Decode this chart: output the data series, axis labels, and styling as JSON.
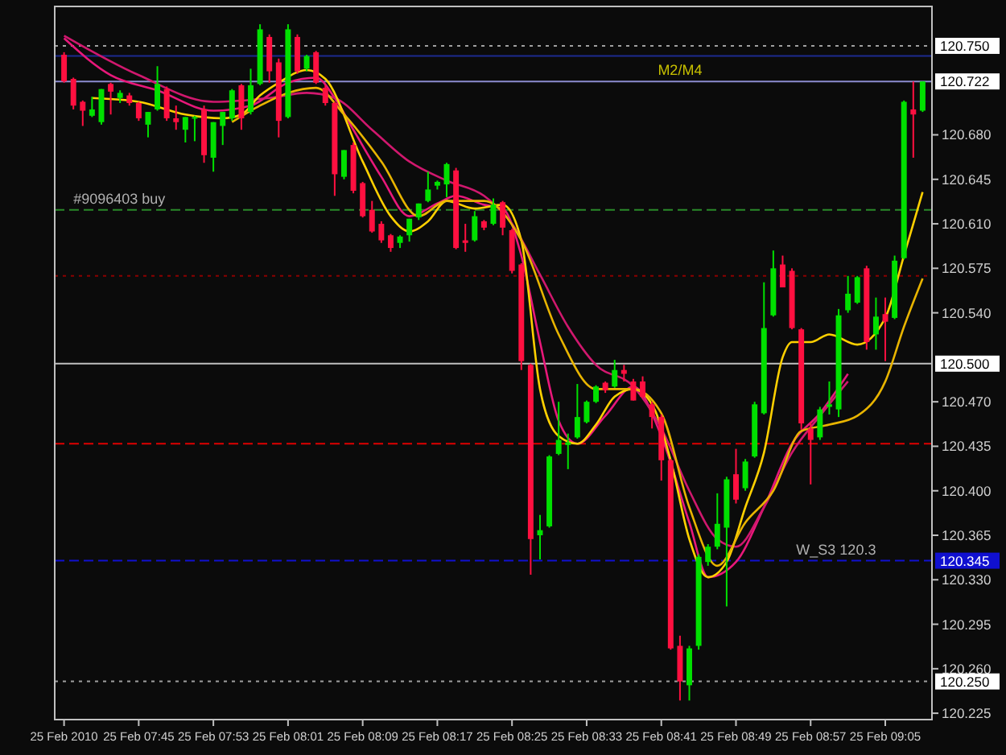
{
  "chart_data": {
    "type": "candlestick",
    "x": [
      "2010-02-25T07:37",
      "2010-02-25T07:38",
      "2010-02-25T07:39",
      "2010-02-25T07:40",
      "2010-02-25T07:41",
      "2010-02-25T07:42",
      "2010-02-25T07:43",
      "2010-02-25T07:44",
      "2010-02-25T07:45",
      "2010-02-25T07:46",
      "2010-02-25T07:47",
      "2010-02-25T07:48",
      "2010-02-25T07:49",
      "2010-02-25T07:50",
      "2010-02-25T07:51",
      "2010-02-25T07:52",
      "2010-02-25T07:53",
      "2010-02-25T07:54",
      "2010-02-25T07:55",
      "2010-02-25T07:56",
      "2010-02-25T07:57",
      "2010-02-25T07:58",
      "2010-02-25T07:59",
      "2010-02-25T08:00",
      "2010-02-25T08:01",
      "2010-02-25T08:02",
      "2010-02-25T08:03",
      "2010-02-25T08:04",
      "2010-02-25T08:05",
      "2010-02-25T08:06",
      "2010-02-25T08:07",
      "2010-02-25T08:08",
      "2010-02-25T08:09",
      "2010-02-25T08:10",
      "2010-02-25T08:11",
      "2010-02-25T08:12",
      "2010-02-25T08:13",
      "2010-02-25T08:14",
      "2010-02-25T08:15",
      "2010-02-25T08:16",
      "2010-02-25T08:17",
      "2010-02-25T08:18",
      "2010-02-25T08:19",
      "2010-02-25T08:20",
      "2010-02-25T08:21",
      "2010-02-25T08:22",
      "2010-02-25T08:23",
      "2010-02-25T08:24",
      "2010-02-25T08:25",
      "2010-02-25T08:26",
      "2010-02-25T08:27",
      "2010-02-25T08:28",
      "2010-02-25T08:29",
      "2010-02-25T08:30",
      "2010-02-25T08:31",
      "2010-02-25T08:32",
      "2010-02-25T08:33",
      "2010-02-25T08:34",
      "2010-02-25T08:35",
      "2010-02-25T08:36",
      "2010-02-25T08:37",
      "2010-02-25T08:38",
      "2010-02-25T08:39",
      "2010-02-25T08:40",
      "2010-02-25T08:41",
      "2010-02-25T08:42",
      "2010-02-25T08:43",
      "2010-02-25T08:44",
      "2010-02-25T08:45",
      "2010-02-25T08:46",
      "2010-02-25T08:47",
      "2010-02-25T08:48",
      "2010-02-25T08:49",
      "2010-02-25T08:50",
      "2010-02-25T08:51",
      "2010-02-25T08:52",
      "2010-02-25T08:53",
      "2010-02-25T08:54",
      "2010-02-25T08:55",
      "2010-02-25T08:56",
      "2010-02-25T08:57",
      "2010-02-25T08:58",
      "2010-02-25T08:59",
      "2010-02-25T09:00",
      "2010-02-25T09:01",
      "2010-02-25T09:02",
      "2010-02-25T09:03",
      "2010-02-25T09:04",
      "2010-02-25T09:05",
      "2010-02-25T09:06",
      "2010-02-25T09:07",
      "2010-02-25T09:08",
      "2010-02-25T09:09"
    ],
    "ohlc": [
      [
        120.743,
        120.745,
        120.721,
        120.722
      ],
      [
        120.724,
        120.725,
        120.7,
        120.703
      ],
      [
        120.706,
        120.707,
        120.687,
        120.699
      ],
      [
        120.695,
        120.71,
        120.694,
        120.7
      ],
      [
        120.69,
        120.716,
        120.688,
        120.716
      ],
      [
        120.72,
        120.721,
        120.696,
        120.714
      ],
      [
        120.709,
        120.715,
        120.705,
        120.713
      ],
      [
        120.711,
        120.713,
        120.703,
        120.705
      ],
      [
        120.705,
        120.706,
        120.691,
        120.693
      ],
      [
        120.688,
        120.698,
        120.678,
        120.698
      ],
      [
        120.7,
        120.734,
        120.699,
        120.72
      ],
      [
        120.716,
        120.718,
        120.691,
        120.693
      ],
      [
        120.693,
        120.703,
        120.684,
        120.69
      ],
      [
        120.684,
        120.694,
        120.674,
        120.694
      ],
      [
        120.693,
        120.695,
        120.675,
        120.694
      ],
      [
        120.7,
        120.703,
        120.658,
        120.664
      ],
      [
        120.662,
        120.69,
        120.651,
        120.69
      ],
      [
        120.687,
        120.698,
        120.672,
        120.698
      ],
      [
        120.693,
        120.716,
        120.691,
        120.715
      ],
      [
        120.719,
        120.72,
        120.684,
        120.693
      ],
      [
        120.698,
        120.732,
        120.696,
        120.719
      ],
      [
        120.72,
        120.767,
        120.719,
        120.763
      ],
      [
        120.757,
        120.759,
        120.721,
        120.73
      ],
      [
        120.737,
        120.74,
        120.678,
        120.691
      ],
      [
        120.694,
        120.767,
        120.693,
        120.763
      ],
      [
        120.757,
        120.759,
        120.728,
        120.73
      ],
      [
        120.732,
        120.743,
        120.73,
        120.742
      ],
      [
        120.745,
        120.746,
        120.72,
        120.721
      ],
      [
        120.717,
        120.719,
        120.703,
        120.705
      ],
      [
        120.705,
        120.706,
        120.632,
        120.649
      ],
      [
        120.647,
        120.668,
        120.645,
        120.668
      ],
      [
        120.672,
        120.674,
        120.634,
        120.636
      ],
      [
        120.642,
        120.643,
        120.615,
        120.616
      ],
      [
        120.621,
        120.628,
        120.603,
        120.604
      ],
      [
        120.61,
        120.612,
        120.595,
        120.597
      ],
      [
        120.601,
        120.602,
        120.588,
        120.591
      ],
      [
        120.595,
        120.601,
        120.591,
        120.6
      ],
      [
        120.601,
        120.614,
        120.596,
        120.614
      ],
      [
        120.615,
        120.626,
        120.613,
        120.626
      ],
      [
        120.628,
        120.651,
        120.627,
        120.637
      ],
      [
        120.64,
        120.644,
        120.637,
        120.643
      ],
      [
        120.641,
        120.658,
        120.631,
        120.657
      ],
      [
        120.652,
        120.654,
        120.59,
        120.591
      ],
      [
        120.597,
        120.61,
        120.588,
        120.595
      ],
      [
        120.597,
        120.62,
        120.596,
        120.616
      ],
      [
        120.612,
        120.613,
        120.605,
        120.607
      ],
      [
        120.61,
        120.63,
        120.609,
        120.625
      ],
      [
        120.627,
        120.628,
        120.601,
        120.607
      ],
      [
        120.605,
        120.606,
        120.571,
        120.573
      ],
      [
        120.578,
        120.579,
        120.495,
        120.502
      ],
      [
        120.499,
        120.5,
        120.334,
        120.362
      ],
      [
        120.365,
        120.381,
        120.346,
        120.369
      ],
      [
        120.372,
        120.428,
        120.371,
        120.427
      ],
      [
        120.429,
        120.47,
        120.428,
        120.44
      ],
      [
        120.436,
        120.445,
        120.417,
        120.438
      ],
      [
        120.442,
        120.484,
        120.441,
        120.458
      ],
      [
        120.454,
        120.471,
        120.453,
        120.47
      ],
      [
        120.47,
        120.483,
        120.469,
        120.482
      ],
      [
        120.485,
        120.486,
        120.477,
        120.479
      ],
      [
        120.482,
        120.503,
        120.481,
        120.495
      ],
      [
        120.495,
        120.499,
        120.486,
        120.492
      ],
      [
        120.486,
        120.488,
        120.471,
        120.471
      ],
      [
        120.486,
        120.49,
        120.473,
        120.474
      ],
      [
        120.468,
        120.47,
        120.449,
        120.458
      ],
      [
        120.458,
        120.46,
        120.408,
        120.424
      ],
      [
        120.424,
        120.425,
        120.275,
        120.276
      ],
      [
        120.278,
        120.286,
        120.235,
        120.25
      ],
      [
        120.247,
        120.278,
        120.235,
        120.276
      ],
      [
        120.278,
        120.35,
        120.275,
        120.348
      ],
      [
        120.344,
        120.358,
        120.341,
        120.356
      ],
      [
        120.356,
        120.398,
        120.354,
        120.374
      ],
      [
        120.371,
        120.411,
        120.309,
        120.409
      ],
      [
        120.413,
        120.433,
        120.39,
        120.393
      ],
      [
        120.402,
        120.425,
        120.4,
        120.423
      ],
      [
        120.427,
        120.47,
        120.426,
        120.468
      ],
      [
        120.461,
        120.564,
        120.46,
        120.528
      ],
      [
        120.538,
        120.589,
        120.537,
        120.575
      ],
      [
        120.578,
        120.585,
        120.56,
        120.56
      ],
      [
        120.573,
        120.575,
        120.527,
        120.528
      ],
      [
        120.527,
        120.528,
        120.448,
        120.453
      ],
      [
        120.449,
        120.454,
        120.405,
        120.44
      ],
      [
        120.442,
        120.466,
        120.44,
        120.464
      ],
      [
        120.466,
        120.486,
        120.46,
        120.468
      ],
      [
        120.464,
        120.543,
        120.458,
        120.538
      ],
      [
        120.542,
        120.569,
        120.54,
        120.555
      ],
      [
        120.548,
        120.569,
        120.547,
        120.568
      ],
      [
        120.575,
        120.577,
        120.511,
        120.517
      ],
      [
        120.523,
        120.552,
        120.511,
        120.537
      ],
      [
        120.539,
        120.552,
        120.502,
        120.533
      ],
      [
        120.536,
        120.585,
        120.535,
        120.581
      ],
      [
        120.583,
        120.707,
        120.582,
        120.706
      ],
      [
        120.7,
        120.722,
        120.662,
        120.696
      ],
      [
        120.699,
        120.722,
        120.698,
        120.722
      ]
    ],
    "series": [
      {
        "type": "line",
        "color": "#e8187a",
        "x": [
          "2010-02-25T07:37",
          "2010-02-25T07:42",
          "2010-02-25T07:47",
          "2010-02-25T07:53",
          "2010-02-25T07:57",
          "2010-02-25T08:01",
          "2010-02-25T08:04",
          "2010-02-25T08:06",
          "2010-02-25T08:08",
          "2010-02-25T08:11",
          "2010-02-25T08:14",
          "2010-02-25T08:17",
          "2010-02-25T08:19",
          "2010-02-25T08:22",
          "2010-02-25T08:24",
          "2010-02-25T08:26",
          "2010-02-25T08:28",
          "2010-02-25T08:30",
          "2010-02-25T08:32",
          "2010-02-25T08:35",
          "2010-02-25T08:38",
          "2010-02-25T08:41",
          "2010-02-25T08:44",
          "2010-02-25T08:46",
          "2010-02-25T08:49",
          "2010-02-25T08:52",
          "2010-02-25T08:55",
          "2010-02-25T08:58",
          "2010-02-25T09:01"
        ],
        "values": [
          120.756,
          120.727,
          120.715,
          120.699,
          120.703,
          120.721,
          120.725,
          120.709,
          120.684,
          120.647,
          120.616,
          120.626,
          120.632,
          120.625,
          120.622,
          120.585,
          120.517,
          120.455,
          120.437,
          120.459,
          120.482,
          120.443,
          120.375,
          120.332,
          120.344,
          120.387,
          120.437,
          120.461,
          120.492
        ]
      },
      {
        "type": "line",
        "color": "#d0186e",
        "x": [
          "2010-02-25T07:37",
          "2010-02-25T07:45",
          "2010-02-25T07:53",
          "2010-02-25T07:59",
          "2010-02-25T08:03",
          "2010-02-25T08:06",
          "2010-02-25T08:10",
          "2010-02-25T08:14",
          "2010-02-25T08:18",
          "2010-02-25T08:22",
          "2010-02-25T08:25",
          "2010-02-25T08:28",
          "2010-02-25T08:31",
          "2010-02-25T08:34",
          "2010-02-25T08:38",
          "2010-02-25T08:41",
          "2010-02-25T08:44",
          "2010-02-25T08:47",
          "2010-02-25T08:49",
          "2010-02-25T08:52",
          "2010-02-25T08:55",
          "2010-02-25T08:58",
          "2010-02-25T09:01"
        ],
        "values": [
          120.758,
          120.727,
          120.706,
          120.709,
          120.713,
          120.709,
          120.684,
          120.659,
          120.644,
          120.632,
          120.61,
          120.57,
          120.529,
          120.499,
          120.482,
          120.449,
          120.4,
          120.362,
          120.356,
          120.387,
          120.43,
          120.459,
          120.486
        ]
      },
      {
        "type": "line",
        "color": "#ffd000",
        "x": [
          "2010-02-25T07:40",
          "2010-02-25T07:45",
          "2010-02-25T07:50",
          "2010-02-25T07:54",
          "2010-02-25T07:56",
          "2010-02-25T07:58",
          "2010-02-25T08:00",
          "2010-02-25T08:03",
          "2010-02-25T08:05",
          "2010-02-25T08:09",
          "2010-02-25T08:12",
          "2010-02-25T08:14",
          "2010-02-25T08:16",
          "2010-02-25T08:18",
          "2010-02-25T08:21",
          "2010-02-25T08:24",
          "2010-02-25T08:26",
          "2010-02-25T08:28",
          "2010-02-25T08:30",
          "2010-02-25T08:32",
          "2010-02-25T08:34",
          "2010-02-25T08:36",
          "2010-02-25T08:38",
          "2010-02-25T08:40",
          "2010-02-25T08:42",
          "2010-02-25T08:44",
          "2010-02-25T08:46",
          "2010-02-25T08:48",
          "2010-02-25T08:50",
          "2010-02-25T08:52",
          "2010-02-25T08:54",
          "2010-02-25T08:55",
          "2010-02-25T08:57",
          "2010-02-25T08:59",
          "2010-02-25T09:02",
          "2010-02-25T09:05",
          "2010-02-25T09:07",
          "2010-02-25T09:09"
        ],
        "values": [
          120.709,
          120.706,
          120.696,
          120.693,
          120.696,
          120.711,
          120.721,
          120.731,
          120.724,
          120.659,
          120.616,
          120.604,
          120.612,
          120.628,
          120.622,
          120.625,
          120.597,
          120.48,
          120.443,
          120.437,
          120.452,
          120.474,
          120.48,
          120.468,
          120.424,
          120.362,
          120.332,
          120.344,
          120.387,
          120.43,
          120.505,
          120.517,
          120.517,
          120.523,
          120.515,
          120.536,
          120.585,
          120.635
        ]
      },
      {
        "type": "line",
        "color": "#e8b400",
        "x": [
          "2010-02-25T07:55",
          "2010-02-25T07:58",
          "2010-02-25T08:01",
          "2010-02-25T08:04",
          "2010-02-25T08:07",
          "2010-02-25T08:11",
          "2010-02-25T08:15",
          "2010-02-25T08:18",
          "2010-02-25T08:22",
          "2010-02-25T08:26",
          "2010-02-25T08:30",
          "2010-02-25T08:34",
          "2010-02-25T08:38",
          "2010-02-25T08:41",
          "2010-02-25T08:44",
          "2010-02-25T08:47",
          "2010-02-25T08:50",
          "2010-02-25T08:53",
          "2010-02-25T08:56",
          "2010-02-25T08:59",
          "2010-02-25T09:02",
          "2010-02-25T09:05",
          "2010-02-25T09:07",
          "2010-02-25T09:09"
        ],
        "values": [
          120.69,
          120.703,
          120.713,
          120.717,
          120.696,
          120.659,
          120.616,
          120.628,
          120.628,
          120.597,
          120.523,
          120.48,
          120.48,
          120.461,
          120.387,
          120.341,
          120.375,
          120.4,
          120.447,
          120.452,
          120.459,
          120.486,
          120.529,
          120.567
        ]
      }
    ],
    "xlim": [
      "2010-02-25T07:36",
      "2010-02-25T09:10"
    ],
    "xticks": [
      {
        "value": "2010-02-25T07:37",
        "label": "25 Feb 2010"
      },
      {
        "value": "2010-02-25T07:45",
        "label": "25 Feb 07:45"
      },
      {
        "value": "2010-02-25T07:53",
        "label": "25 Feb 07:53"
      },
      {
        "value": "2010-02-25T08:01",
        "label": "25 Feb 08:01"
      },
      {
        "value": "2010-02-25T08:09",
        "label": "25 Feb 08:09"
      },
      {
        "value": "2010-02-25T08:17",
        "label": "25 Feb 08:17"
      },
      {
        "value": "2010-02-25T08:25",
        "label": "25 Feb 08:25"
      },
      {
        "value": "2010-02-25T08:33",
        "label": "25 Feb 08:33"
      },
      {
        "value": "2010-02-25T08:41",
        "label": "25 Feb 08:41"
      },
      {
        "value": "2010-02-25T08:49",
        "label": "25 Feb 08:49"
      },
      {
        "value": "2010-02-25T08:57",
        "label": "25 Feb 08:57"
      },
      {
        "value": "2010-02-25T09:05",
        "label": "25 Feb 09:05"
      }
    ],
    "ylim": [
      120.22,
      120.781
    ],
    "yticks": [
      120.225,
      {
        "value": 120.26,
        "label": "120.260"
      },
      120.295,
      {
        "value": 120.33,
        "label": "120.330"
      },
      120.365,
      {
        "value": 120.4,
        "label": "120.400"
      },
      120.435,
      {
        "value": 120.47,
        "label": "120.470"
      },
      {
        "value": 120.54,
        "label": "120.540"
      },
      120.575,
      {
        "value": 120.61,
        "label": "120.610"
      },
      120.645,
      {
        "value": 120.68,
        "label": "120.680"
      }
    ],
    "ref_lines": [
      {
        "axis": "y",
        "value": 120.75,
        "label": "120.750",
        "color": "#a0a0a0",
        "line_style": "dotted"
      },
      {
        "axis": "y",
        "value": 120.742,
        "color": "#1c2a90",
        "line_style": "solid"
      },
      {
        "axis": "y",
        "value": 120.722,
        "label": "120.722",
        "color": "#8c8cd0",
        "line_style": "solid"
      },
      {
        "axis": "y",
        "value": 120.621,
        "color": "#2a8a2a",
        "line_style": "dashed"
      },
      {
        "axis": "y",
        "value": 120.569,
        "color": "#8b0000",
        "line_style": "dotted"
      },
      {
        "axis": "y",
        "value": 120.5,
        "label": "120.500",
        "color": "#c0c0c0",
        "line_style": "solid"
      },
      {
        "axis": "y",
        "value": 120.437,
        "color": "#e00000",
        "line_style": "dashed"
      },
      {
        "axis": "y",
        "value": 120.345,
        "label": "120.345",
        "color": "#1010d0",
        "line_style": "dashed"
      },
      {
        "axis": "y",
        "value": 120.25,
        "label": "120.250",
        "color": "#a0a0a0",
        "line_style": "dotted"
      }
    ],
    "annotations": [
      {
        "text": "#9096403 buy",
        "x": "2010-02-25T07:38",
        "y": 120.621
      },
      {
        "text": "M2/M4",
        "x": "2010-02-25T08:43",
        "y": 120.722
      },
      {
        "text": "W_S3 120.3",
        "x": "2010-02-25T09:04",
        "y": 120.345
      }
    ],
    "grid": false
  }
}
